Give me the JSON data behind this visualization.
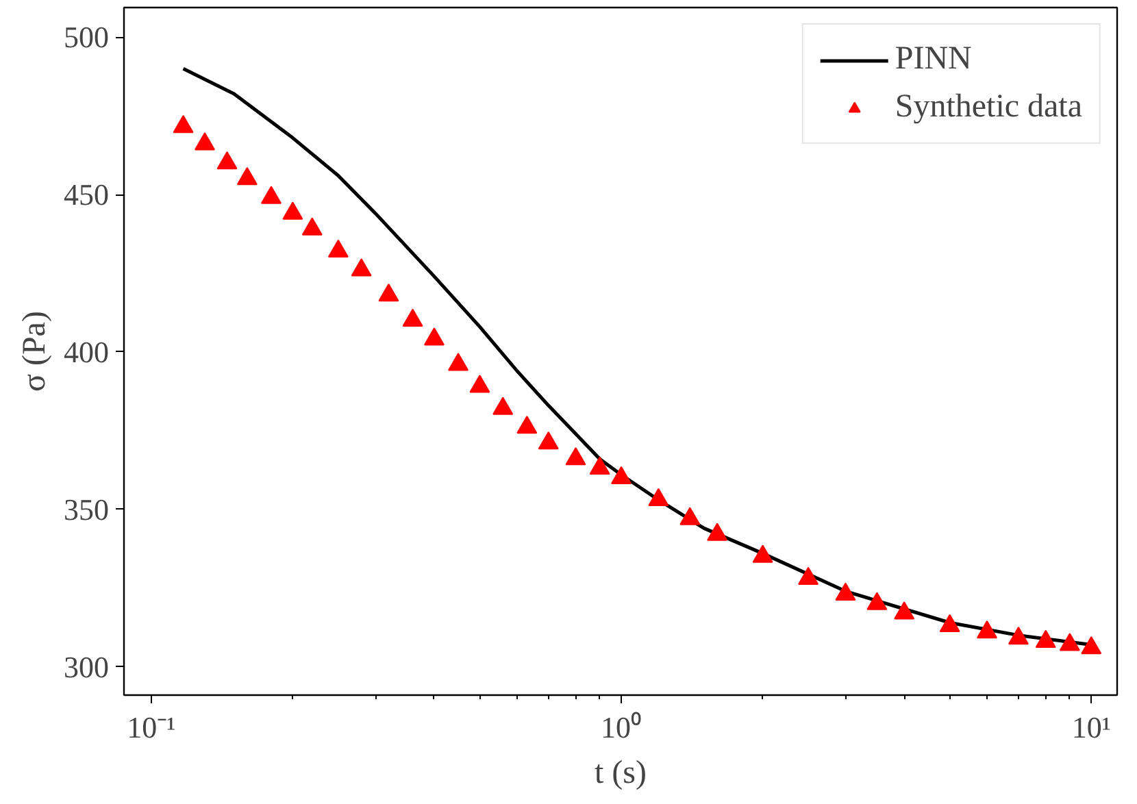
{
  "chart_data": {
    "type": "scatter",
    "xlabel": "t (s)",
    "ylabel": "σ (Pa)",
    "log": "x",
    "xlim": [
      0.0875,
      11.35
    ],
    "ylim": [
      291,
      509.4
    ],
    "xticks": [
      {
        "value": 0.1,
        "label": "10⁻¹"
      },
      {
        "value": 1,
        "label": "10⁰"
      },
      {
        "value": 10,
        "label": "10¹"
      },
      {
        "value": 0.2,
        "label": null
      },
      {
        "value": 0.3,
        "label": null
      },
      {
        "value": 0.4,
        "label": null
      },
      {
        "value": 0.5,
        "label": null
      },
      {
        "value": 0.6,
        "label": null
      },
      {
        "value": 0.7,
        "label": null
      },
      {
        "value": 0.8,
        "label": null
      },
      {
        "value": 0.9,
        "label": null
      },
      {
        "value": 2,
        "label": null
      },
      {
        "value": 3,
        "label": null
      },
      {
        "value": 4,
        "label": null
      },
      {
        "value": 5,
        "label": null
      },
      {
        "value": 6,
        "label": null
      },
      {
        "value": 7,
        "label": null
      },
      {
        "value": 8,
        "label": null
      },
      {
        "value": 9,
        "label": null
      }
    ],
    "yticks": [
      300,
      350,
      400,
      450,
      500
    ],
    "grid": false,
    "legend": "top right",
    "series": [
      {
        "name": "PINN",
        "type": "line",
        "color": "#000000",
        "line_style": "solid",
        "marker": "none",
        "x": [
          0.117,
          0.15,
          0.2,
          0.25,
          0.3,
          0.4,
          0.5,
          0.6,
          0.7,
          0.8,
          0.9,
          1,
          1.2,
          1.5,
          2,
          3,
          5,
          7,
          10
        ],
        "values": [
          490,
          482,
          468,
          456,
          444,
          424,
          408,
          394,
          383,
          374,
          366,
          361,
          353,
          344,
          336,
          324,
          314,
          310,
          307
        ]
      },
      {
        "name": "Synthetic data",
        "color": "#ff0000",
        "marker": "triangle",
        "x": [
          0.117,
          0.13,
          0.145,
          0.16,
          0.18,
          0.2,
          0.22,
          0.25,
          0.28,
          0.32,
          0.36,
          0.4,
          0.45,
          0.5,
          0.56,
          0.63,
          0.7,
          0.8,
          0.9,
          1.0,
          1.2,
          1.4,
          1.6,
          2,
          2.5,
          3,
          3.5,
          4,
          5,
          6,
          7,
          8,
          9,
          10
        ],
        "values": [
          471.5,
          466,
          460,
          455,
          449,
          444,
          439,
          432,
          426,
          418,
          410,
          404,
          396,
          389,
          382,
          376,
          371,
          366,
          363,
          360,
          353,
          347,
          342,
          335,
          328,
          323,
          320,
          317,
          313,
          311,
          309,
          308,
          307,
          306
        ]
      }
    ]
  }
}
